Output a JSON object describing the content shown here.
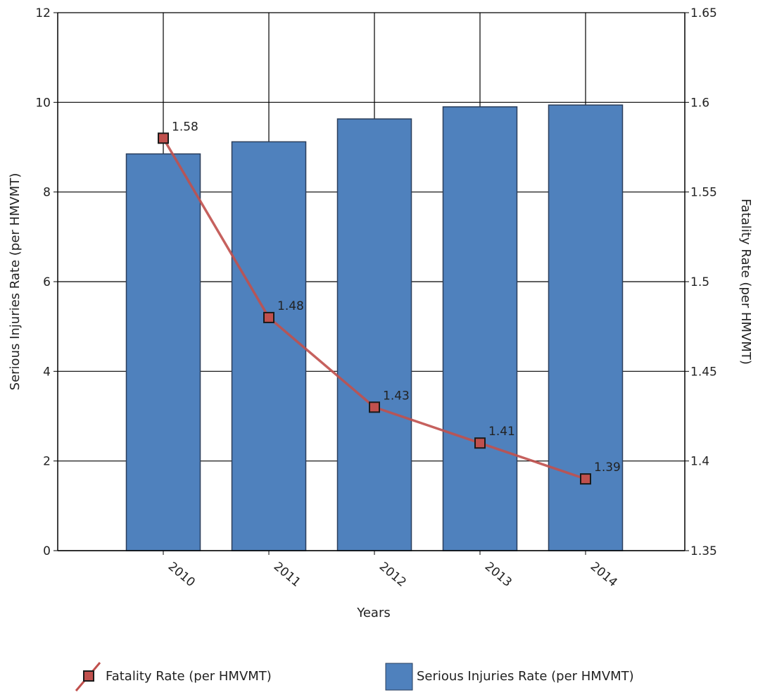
{
  "chart_data": {
    "type": "bar",
    "categories": [
      "2010",
      "2011",
      "2012",
      "2013",
      "2014"
    ],
    "series": [
      {
        "name": "Serious Injuries Rate (per HMVMT)",
        "kind": "bar",
        "axis": "left",
        "color": "#4f81bd",
        "values": [
          8.85,
          9.12,
          9.63,
          9.9,
          9.94
        ]
      },
      {
        "name": "Fatality Rate (per HMVMT)",
        "kind": "line",
        "axis": "right",
        "color": "#c0504d",
        "values": [
          1.58,
          1.48,
          1.43,
          1.41,
          1.39
        ],
        "labels": [
          "1.58",
          "1.48",
          "1.43",
          "1.41",
          "1.39"
        ]
      }
    ],
    "xlabel": "Years",
    "ylabel": "Serious Injuries Rate (per HMVMT)",
    "y2label": "Fatality Rate (per HMVMT)",
    "ylim": [
      0,
      12
    ],
    "y2lim": [
      1.35,
      1.65
    ],
    "yticks": [
      "0",
      "2",
      "4",
      "6",
      "8",
      "10",
      "12"
    ],
    "y2ticks": [
      "1.35",
      "1.4",
      "1.45",
      "1.5",
      "1.55",
      "1.6",
      "1.65"
    ],
    "grid": true,
    "legend": "bottom"
  }
}
